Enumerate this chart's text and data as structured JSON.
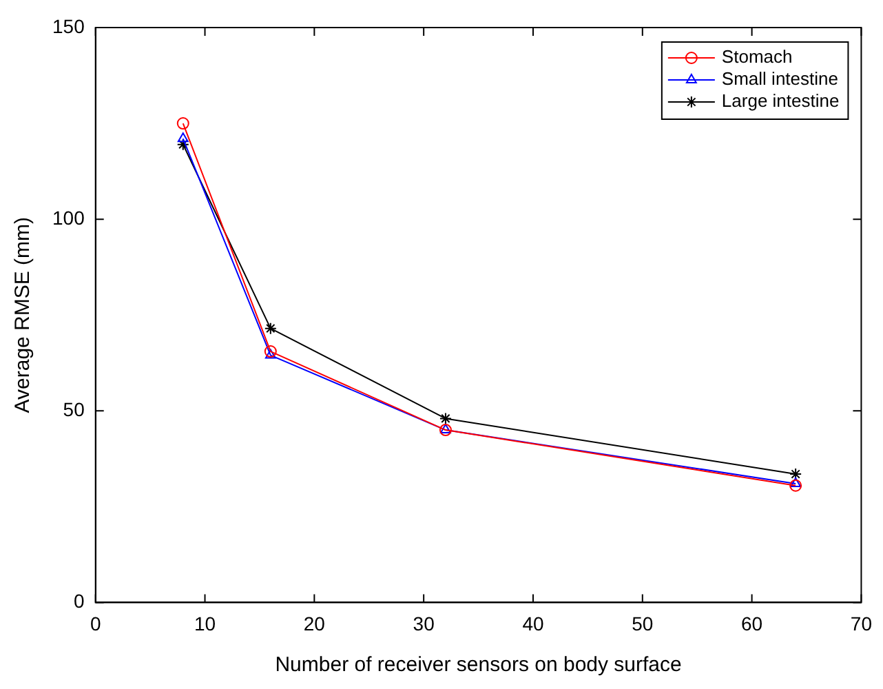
{
  "chart_data": {
    "type": "line",
    "xlabel": "Number of receiver sensors on body surface",
    "ylabel": "Average RMSE (mm)",
    "x": [
      8,
      16,
      32,
      64
    ],
    "series": [
      {
        "name": "Stomach",
        "color": "#ff0000",
        "marker": "circle",
        "values": [
          125,
          65.5,
          45,
          30.5
        ]
      },
      {
        "name": "Small intestine",
        "color": "#0000ff",
        "marker": "triangle",
        "values": [
          121,
          64.5,
          45,
          31
        ]
      },
      {
        "name": "Large intestine",
        "color": "#000000",
        "marker": "cross",
        "values": [
          119.5,
          71.5,
          48,
          33.5
        ]
      }
    ],
    "xlim": [
      0,
      70
    ],
    "xticks": [
      0,
      10,
      20,
      30,
      40,
      50,
      60,
      70
    ],
    "ylim": [
      0,
      150
    ],
    "yticks": [
      0,
      50,
      100,
      150
    ],
    "grid": false,
    "legend": "top right",
    "line_style": "solid"
  }
}
